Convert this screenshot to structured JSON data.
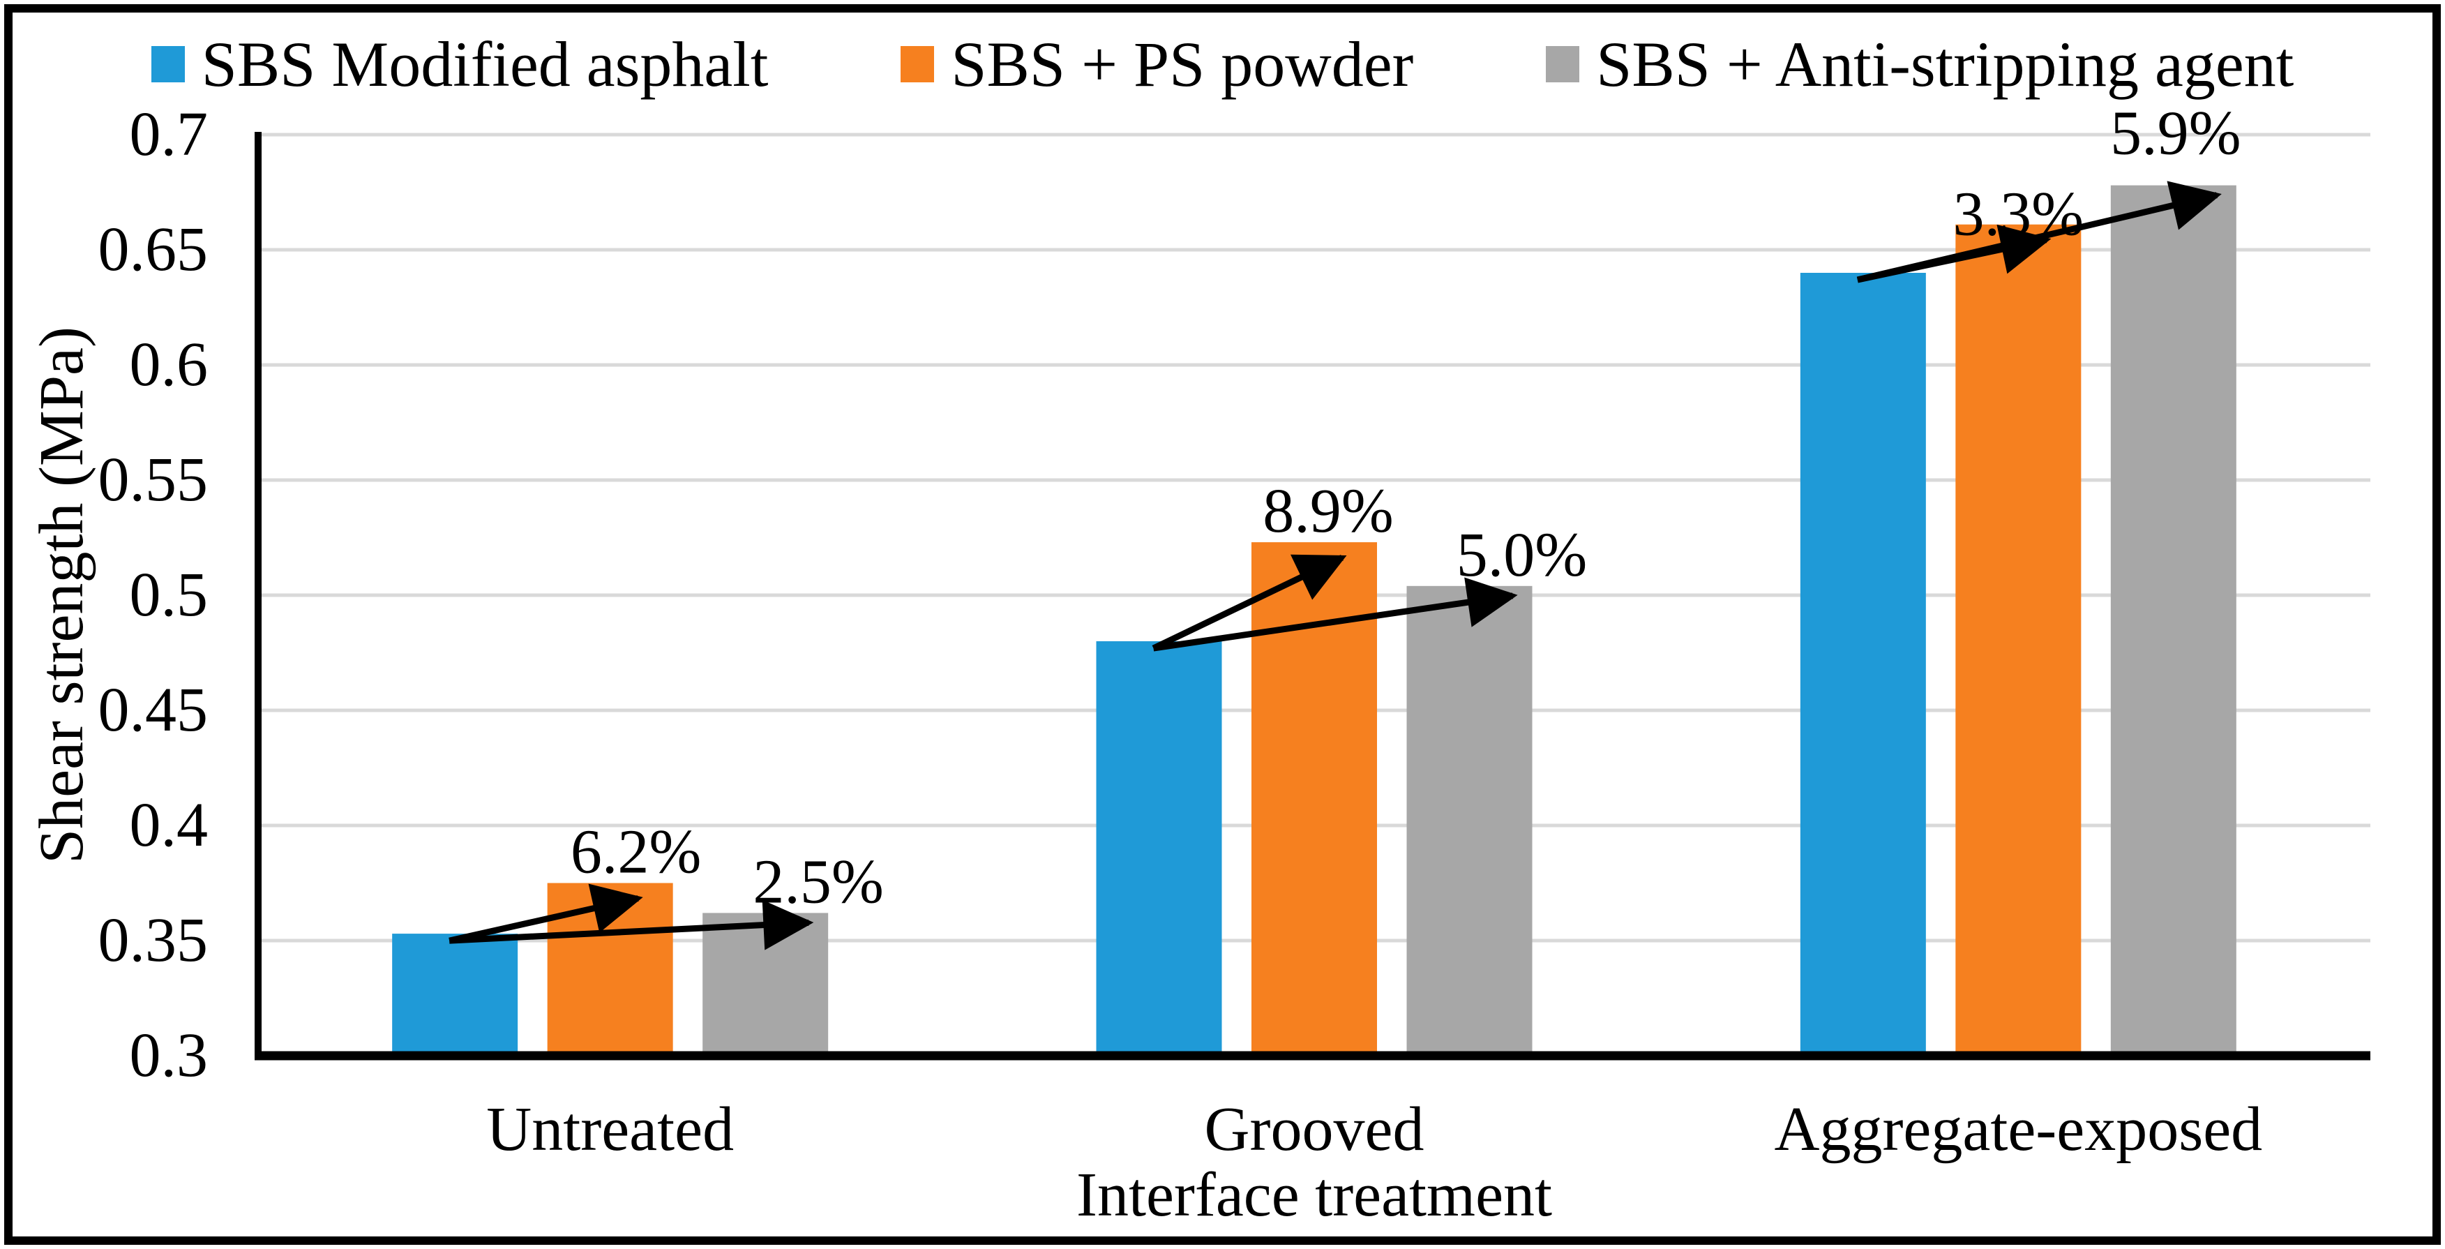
{
  "figure": {
    "background": "#FFFFFF",
    "border_color": "#000000"
  },
  "chart_data": {
    "type": "bar",
    "title": "",
    "xlabel": "Interface treatment",
    "ylabel": "Shear strength (MPa)",
    "categories": [
      "Untreated",
      "Grooved",
      "Aggregate-exposed"
    ],
    "series": [
      {
        "name": "SBS Modified asphalt",
        "color": "#1F9AD7",
        "values": [
          0.353,
          0.48,
          0.64
        ]
      },
      {
        "name": "SBS + PS powder",
        "color": "#F6801F",
        "values": [
          0.375,
          0.523,
          0.661
        ]
      },
      {
        "name": "SBS + Anti-stripping agent",
        "color": "#A7A7A7",
        "values": [
          0.362,
          0.504,
          0.678
        ]
      }
    ],
    "ylim": [
      0.3,
      0.7
    ],
    "ytick_labels": [
      "0.7",
      "0.65",
      "0.6",
      "0.55",
      "0.5",
      "0.45",
      "0.4",
      "0.35",
      "0.3"
    ],
    "grid": true,
    "gridline_color": "#D9D9D9",
    "axis_color": "#000000",
    "legend_position": "top",
    "annotations": [
      {
        "category_index": 0,
        "series_index": 1,
        "text": "6.2%"
      },
      {
        "category_index": 0,
        "series_index": 2,
        "text": "2.5%"
      },
      {
        "category_index": 1,
        "series_index": 1,
        "text": "8.9%"
      },
      {
        "category_index": 1,
        "series_index": 2,
        "text": "5.0%"
      },
      {
        "category_index": 2,
        "series_index": 1,
        "text": "3.3%"
      },
      {
        "category_index": 2,
        "series_index": 2,
        "text": "5.9%"
      }
    ],
    "arrows_from_series_index": 0,
    "arrow_color": "#000000"
  }
}
